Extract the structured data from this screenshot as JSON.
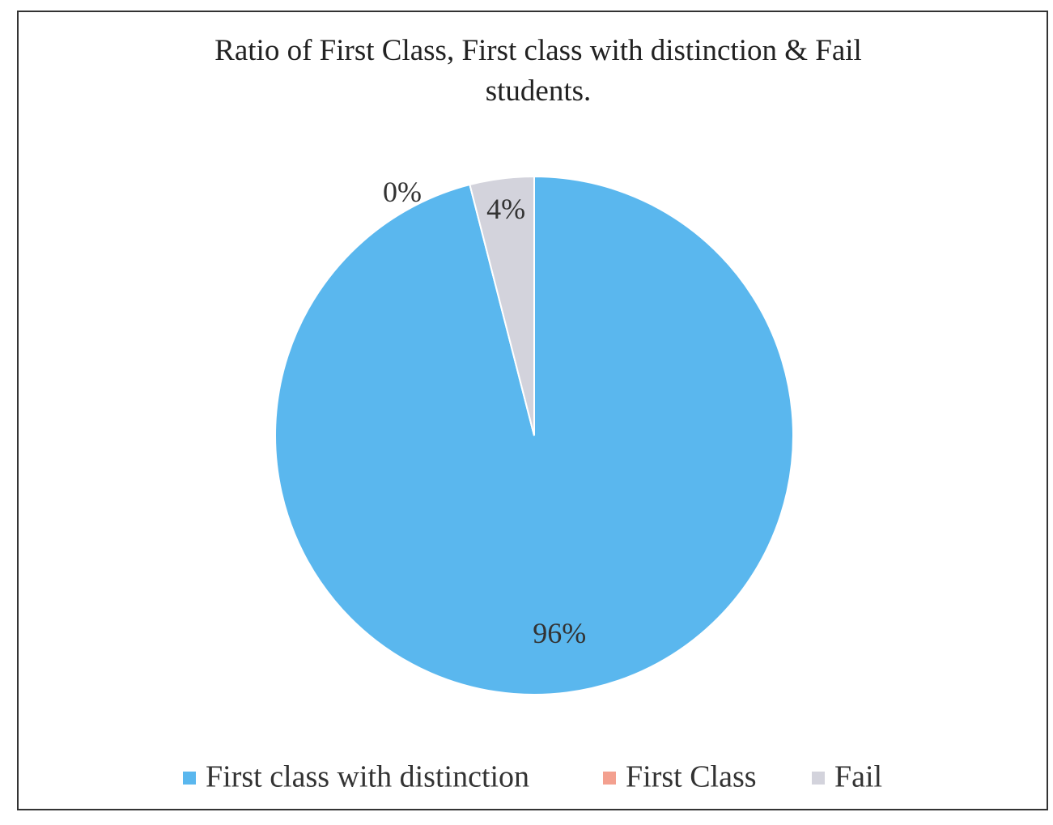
{
  "chart_data": {
    "type": "pie",
    "title": "Ratio of First Class, First class with distinction & Fail students.",
    "categories": [
      "First class with distinction",
      "First Class",
      "Fail"
    ],
    "values": [
      96,
      0,
      4
    ],
    "value_labels": [
      "96%",
      "0%",
      "4%"
    ],
    "colors": [
      "#5ab7ee",
      "#f3a08f",
      "#d3d3dc"
    ],
    "legend": "bottom"
  }
}
